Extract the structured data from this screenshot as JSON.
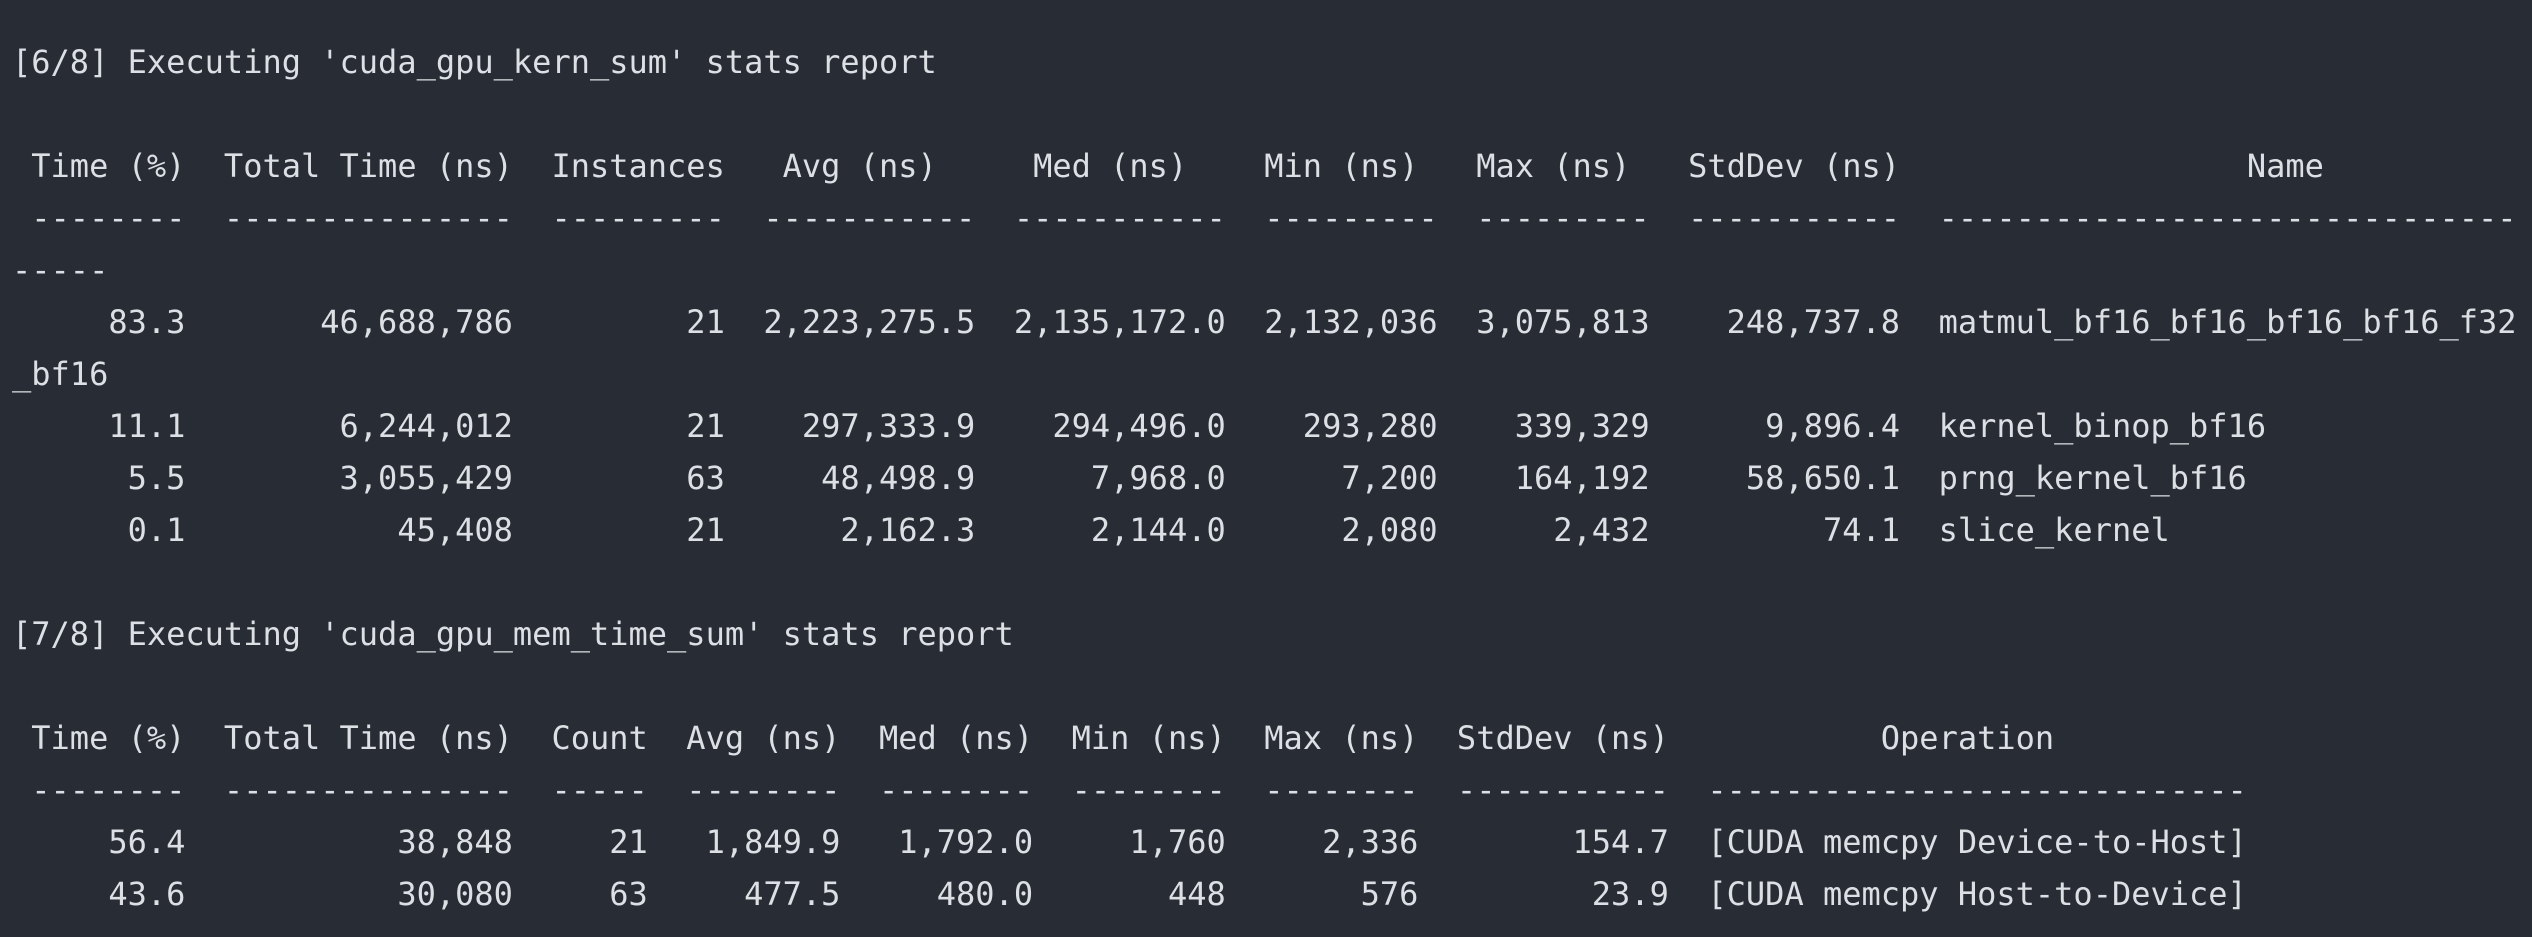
{
  "terminal": {
    "lines": [
      "[6/8] Executing 'cuda_gpu_kern_sum' stats report",
      "",
      " Time (%)  Total Time (ns)  Instances   Avg (ns)     Med (ns)    Min (ns)   Max (ns)   StdDev (ns)                  Name",
      " --------  ---------------  ---------  -----------  -----------  ---------  ---------  -----------  ------------------------------",
      "-----",
      "     83.3       46,688,786         21  2,223,275.5  2,135,172.0  2,132,036  3,075,813    248,737.8  matmul_bf16_bf16_bf16_bf16_f32",
      "_bf16",
      "     11.1        6,244,012         21    297,333.9    294,496.0    293,280    339,329      9,896.4  kernel_binop_bf16",
      "      5.5        3,055,429         63     48,498.9      7,968.0      7,200    164,192     58,650.1  prng_kernel_bf16",
      "      0.1           45,408         21      2,162.3      2,144.0      2,080      2,432         74.1  slice_kernel",
      "",
      "[7/8] Executing 'cuda_gpu_mem_time_sum' stats report",
      "",
      " Time (%)  Total Time (ns)  Count  Avg (ns)  Med (ns)  Min (ns)  Max (ns)  StdDev (ns)           Operation",
      " --------  ---------------  -----  --------  --------  --------  --------  -----------  ----------------------------",
      "     56.4           38,848     21   1,849.9   1,792.0     1,760     2,336        154.7  [CUDA memcpy Device-to-Host]",
      "     43.6           30,080     63     477.5     480.0       448       576         23.9  [CUDA memcpy Host-to-Device]"
    ]
  }
}
